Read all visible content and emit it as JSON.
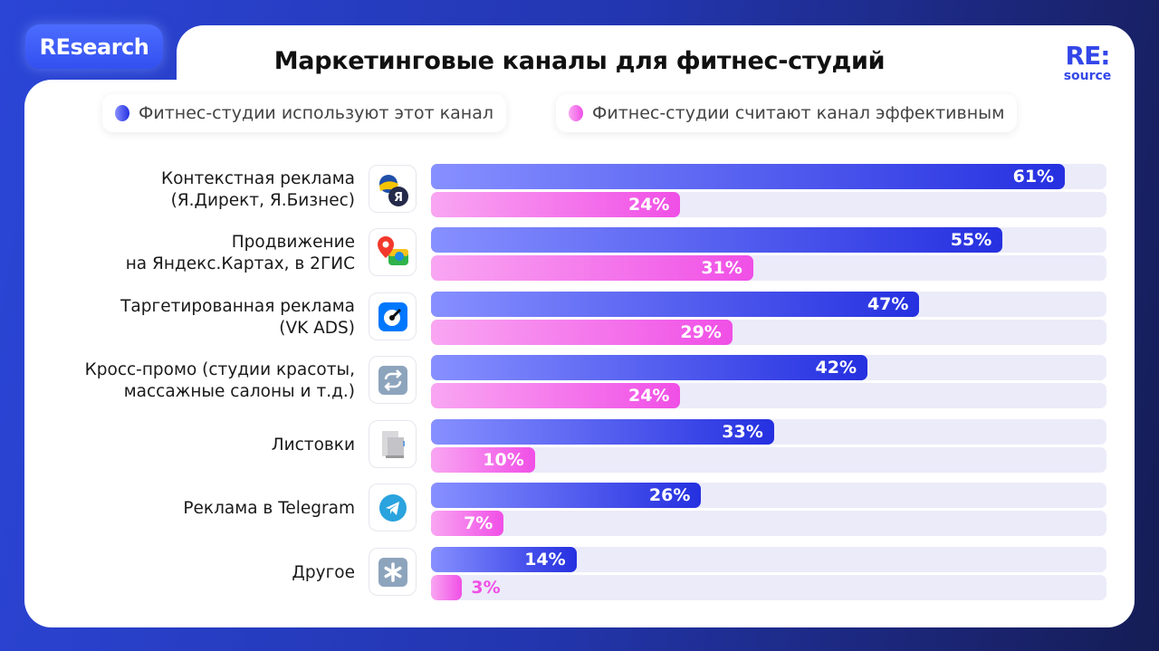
{
  "tab_label": "REsearch",
  "logo": {
    "line1": "RE:",
    "line2": "source"
  },
  "chart_data": {
    "type": "bar",
    "orientation": "horizontal",
    "title": "Маркетинговые каналы для фитнес-студий",
    "unit": "%",
    "xlim": [
      0,
      65
    ],
    "grid": false,
    "legend_placement": "top",
    "categories": [
      "Контекстная реклама\n(Я.Директ, Я.Бизнес)",
      "Продвижение\nна Яндекс.Картах, в 2ГИС",
      "Таргетированная реклама\n(VK ADS)",
      "Кросс-промо (студии красоты,\nмассажные салоны и т.д.)",
      "Листовки",
      "Реклама в Telegram",
      "Другое"
    ],
    "icons": [
      "yandex-icon",
      "maps-2gis-icon",
      "vk-ads-icon",
      "repeat-icon",
      "leaflet-icon",
      "telegram-icon",
      "asterisk-icon"
    ],
    "series": [
      {
        "name": "Фитнес-студии используют этот канал",
        "color": "#2530e0",
        "values": [
          61,
          55,
          47,
          42,
          33,
          26,
          14
        ]
      },
      {
        "name": "Фитнес-студии считают канал эффективным",
        "color": "#f04fe6",
        "values": [
          24,
          31,
          29,
          24,
          10,
          7,
          3
        ]
      }
    ]
  }
}
